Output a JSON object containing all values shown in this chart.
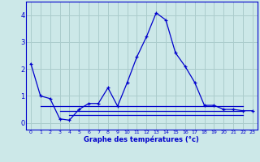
{
  "xlabel": "Graphe des températures (°c)",
  "background_color": "#cce8e8",
  "grid_color": "#aacccc",
  "line_color": "#0000cc",
  "x_ticks": [
    0,
    1,
    2,
    3,
    4,
    5,
    6,
    7,
    8,
    9,
    10,
    11,
    12,
    13,
    14,
    15,
    16,
    17,
    18,
    19,
    20,
    21,
    22,
    23
  ],
  "ylim": [
    -0.25,
    4.5
  ],
  "xlim": [
    -0.5,
    23.5
  ],
  "series1": [
    2.2,
    1.0,
    0.9,
    0.15,
    0.1,
    0.5,
    0.72,
    0.72,
    1.3,
    0.62,
    1.5,
    2.45,
    3.2,
    4.08,
    3.82,
    2.6,
    2.1,
    1.5,
    0.65,
    0.65,
    0.5,
    0.5,
    0.45,
    0.45
  ],
  "flat_line1_y": 0.62,
  "flat_line1_x_start": 1,
  "flat_line1_x_end": 22,
  "flat_line2_y": 0.45,
  "flat_line2_x_start": 3,
  "flat_line2_x_end": 22,
  "flat_line3_y": 0.28,
  "flat_line3_x_start": 4,
  "flat_line3_x_end": 22,
  "yticks": [
    0,
    1,
    2,
    3,
    4
  ]
}
